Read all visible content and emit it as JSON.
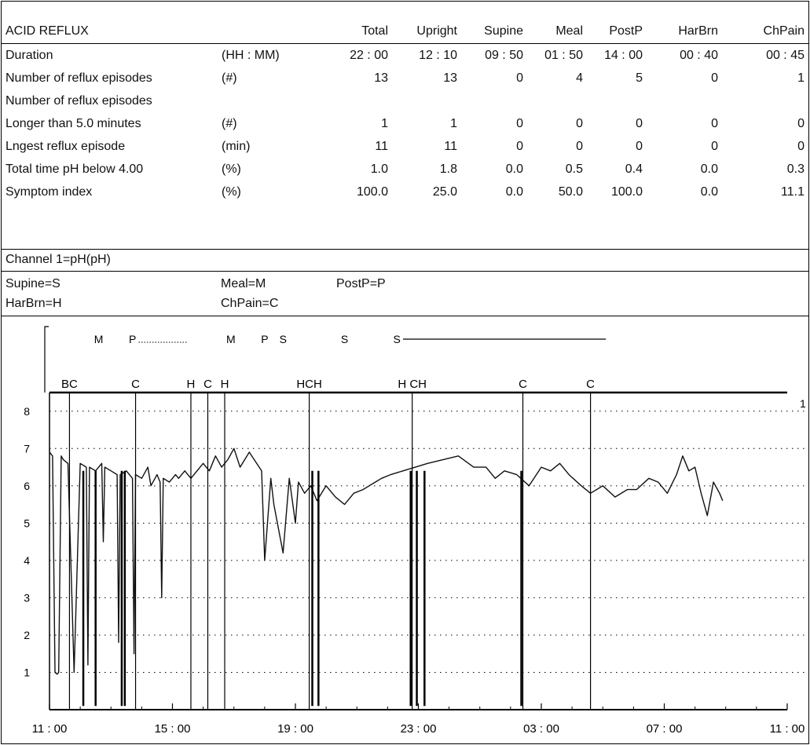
{
  "table": {
    "headers": [
      "ACID REFLUX",
      "",
      "Total",
      "Upright",
      "Supine",
      "Meal",
      "PostP",
      "HarBrn",
      "ChPain"
    ],
    "rows": [
      {
        "label": "Duration",
        "unit": "(HH : MM)",
        "values": [
          "22 : 00",
          "12 : 10",
          "09 : 50",
          "01 : 50",
          "14 : 00",
          "00 : 40",
          "00 : 45"
        ]
      },
      {
        "label": "Number of reflux episodes",
        "unit": "(#)",
        "values": [
          "13",
          "13",
          "0",
          "4",
          "5",
          "0",
          "1"
        ]
      },
      {
        "label": "Number of reflux episodes",
        "unit": "",
        "values": [
          "",
          "",
          "",
          "",
          "",
          "",
          ""
        ]
      },
      {
        "label": "Longer than 5.0 minutes",
        "unit": "(#)",
        "values": [
          "1",
          "1",
          "0",
          "0",
          "0",
          "0",
          "0"
        ]
      },
      {
        "label": "Lngest reflux episode",
        "unit": "(min)",
        "values": [
          "11",
          "11",
          "0",
          "0",
          "0",
          "0",
          "0"
        ]
      },
      {
        "label": "Total time pH below 4.00",
        "unit": "(%)",
        "values": [
          "1.0",
          "1.8",
          "0.0",
          "0.5",
          "0.4",
          "0.0",
          "0.3"
        ]
      },
      {
        "label": "Symptom index",
        "unit": "(%)",
        "values": [
          "100.0",
          "25.0",
          "0.0",
          "50.0",
          "100.0",
          "0.0",
          "11.1"
        ]
      }
    ]
  },
  "channel_label": "Channel 1=pH(pH)",
  "legend": {
    "supine": "Supine=S",
    "meal": "Meal=M",
    "postp": "PostP=P",
    "harbrn": "HarBrn=H",
    "chpain": "ChPain=C"
  },
  "chart_data": {
    "type": "line",
    "xlabel": "",
    "ylabel": "",
    "x_tick_labels": [
      "11 : 00",
      "15 : 00",
      "19 : 00",
      "23 : 00",
      "03 : 00",
      "07 : 00",
      "11 : 00"
    ],
    "x_tick_hours": [
      0,
      4,
      8,
      12,
      16,
      20,
      24
    ],
    "xlim": [
      0,
      24
    ],
    "ylim": [
      0,
      8.5
    ],
    "y_ticks": [
      1,
      2,
      3,
      4,
      5,
      6,
      7,
      8
    ],
    "right_axis_label": "1",
    "grid": true,
    "series": [
      {
        "x": [
          0,
          0.1,
          0.18,
          0.25,
          0.3,
          0.38,
          0.45,
          0.6,
          0.8,
          1.0,
          1.2,
          1.25,
          1.3,
          1.5,
          1.7,
          1.75,
          1.8,
          2.0,
          2.2,
          2.25,
          2.3,
          2.5,
          2.7,
          2.75,
          2.8,
          3.0,
          3.2,
          3.3,
          3.5,
          3.6,
          3.65,
          3.7,
          3.9,
          4.0,
          4.1,
          4.2,
          4.4,
          4.6,
          4.9,
          5.0,
          5.2,
          5.4,
          5.6,
          5.8,
          6.0,
          6.2,
          6.5,
          6.9,
          7.0,
          7.2,
          7.3,
          7.6,
          7.8,
          8.0,
          8.1,
          8.3,
          8.5,
          8.7,
          9.0,
          9.3,
          9.6,
          9.9,
          10.2,
          10.4,
          10.6,
          10.8,
          11.1,
          11.5,
          11.9,
          12.3,
          12.8,
          13.3,
          13.8,
          14.2,
          14.5,
          14.8,
          15.2,
          15.6,
          16.0,
          16.3,
          16.6,
          16.9,
          17.3,
          17.6,
          18.0,
          18.4,
          18.8,
          19.1,
          19.5,
          19.8,
          20.1,
          20.4,
          20.6,
          20.8,
          21.0,
          21.2,
          21.4,
          21.6,
          21.8,
          21.9
        ],
        "y": [
          6.9,
          6.8,
          1.0,
          0.95,
          1.0,
          6.8,
          6.7,
          6.6,
          1.0,
          6.6,
          6.5,
          1.2,
          6.5,
          6.4,
          6.6,
          4.5,
          6.5,
          6.4,
          6.3,
          1.8,
          6.3,
          6.4,
          6.2,
          1.5,
          6.3,
          6.2,
          6.5,
          6.0,
          6.3,
          6.1,
          3.0,
          6.2,
          6.1,
          6.2,
          6.3,
          6.2,
          6.4,
          6.2,
          6.5,
          6.6,
          6.4,
          6.8,
          6.5,
          6.7,
          7.0,
          6.5,
          6.9,
          6.4,
          4.0,
          6.2,
          5.5,
          4.2,
          6.2,
          5.0,
          6.1,
          5.8,
          6.0,
          5.6,
          6.0,
          5.7,
          5.5,
          5.8,
          5.9,
          6.0,
          6.1,
          6.2,
          6.3,
          6.4,
          6.5,
          6.6,
          6.7,
          6.8,
          6.5,
          6.5,
          6.2,
          6.4,
          6.3,
          6.0,
          6.5,
          6.4,
          6.6,
          6.3,
          6.0,
          5.8,
          6.0,
          5.7,
          5.9,
          5.9,
          6.2,
          6.1,
          5.8,
          6.3,
          6.8,
          6.4,
          6.5,
          5.8,
          5.2,
          6.1,
          5.8,
          5.6
        ]
      }
    ],
    "reflux_drops": [
      {
        "x": 1.1,
        "y_min": 0.1
      },
      {
        "x": 1.5,
        "y_min": 0.1
      },
      {
        "x": 2.35,
        "y_min": 0.1
      },
      {
        "x": 2.45,
        "y_min": 0.1
      },
      {
        "x": 8.55,
        "y_min": 0.1
      },
      {
        "x": 8.75,
        "y_min": 0.1
      },
      {
        "x": 11.75,
        "y_min": 0.1
      },
      {
        "x": 11.95,
        "y_min": 0.1
      },
      {
        "x": 12.2,
        "y_min": 0.1
      },
      {
        "x": 15.35,
        "y_min": 0.1
      }
    ],
    "symptom_markers": [
      {
        "x": 0.65,
        "label": "BC"
      },
      {
        "x": 2.8,
        "label": "C"
      },
      {
        "x": 4.6,
        "label": "H"
      },
      {
        "x": 5.15,
        "label": "C"
      },
      {
        "x": 5.7,
        "label": "H"
      },
      {
        "x": 8.45,
        "label": "HCH"
      },
      {
        "x": 11.8,
        "label": "H CH"
      },
      {
        "x": 15.4,
        "label": "C"
      },
      {
        "x": 17.6,
        "label": "C"
      }
    ],
    "period_markers": [
      {
        "label": "M",
        "x": 1.6
      },
      {
        "label": "P",
        "x": 2.7
      },
      {
        "label": "M",
        "x": 5.9
      },
      {
        "label": "P",
        "x": 7.0
      },
      {
        "label": "S",
        "x": 7.6
      },
      {
        "label": "S",
        "x": 9.6
      },
      {
        "label": "S",
        "x": 11.3
      }
    ]
  }
}
